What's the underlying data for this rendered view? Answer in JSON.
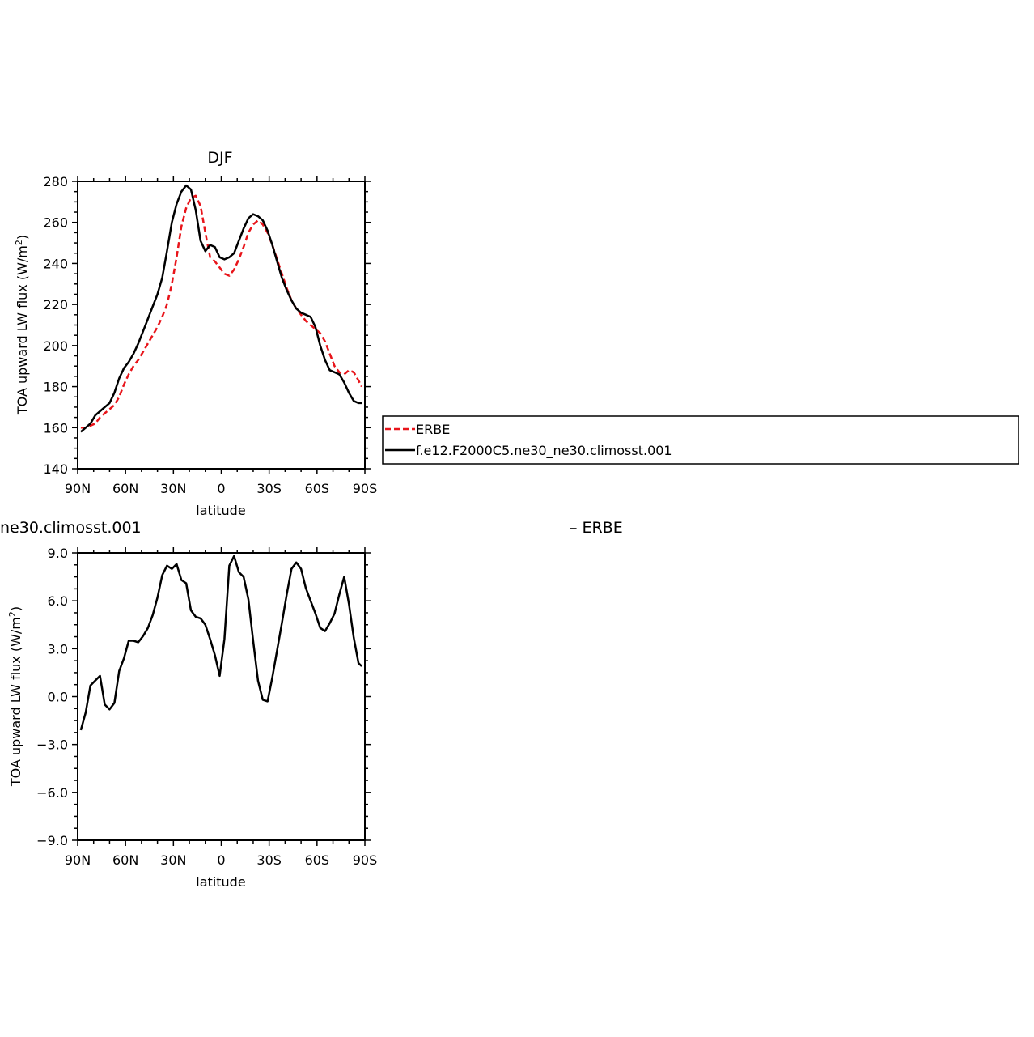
{
  "chart_data": [
    {
      "type": "line",
      "title": "DJF",
      "xlabel": "latitude",
      "ylabel": "TOA upward LW flux (W/m",
      "ylabel_sup": "2",
      "ylabel_close": ")",
      "xlim": [
        90,
        -90
      ],
      "ylim": [
        140,
        280
      ],
      "xticks": [
        {
          "value": 90,
          "label": "90N"
        },
        {
          "value": 60,
          "label": "60N"
        },
        {
          "value": 30,
          "label": "30N"
        },
        {
          "value": 0,
          "label": "0"
        },
        {
          "value": -30,
          "label": "30S"
        },
        {
          "value": -60,
          "label": "60S"
        },
        {
          "value": -90,
          "label": "90S"
        }
      ],
      "yticks": [
        {
          "value": 140,
          "label": "140"
        },
        {
          "value": 160,
          "label": "160"
        },
        {
          "value": 180,
          "label": "180"
        },
        {
          "value": 200,
          "label": "200"
        },
        {
          "value": 220,
          "label": "220"
        },
        {
          "value": 240,
          "label": "240"
        },
        {
          "value": 260,
          "label": "260"
        },
        {
          "value": 280,
          "label": "280"
        }
      ],
      "legend": "right",
      "series": [
        {
          "name": "ERBE",
          "color": "#e8141a",
          "dash": true,
          "x": [
            88,
            85,
            82,
            79,
            76,
            73,
            70,
            67,
            64,
            61,
            58,
            55,
            52,
            49,
            46,
            43,
            40,
            37,
            34,
            31,
            28,
            25,
            22,
            19,
            16,
            13,
            10,
            7,
            4,
            1,
            -2,
            -5,
            -8,
            -11,
            -14,
            -17,
            -20,
            -23,
            -26,
            -29,
            -32,
            -35,
            -38,
            -41,
            -44,
            -47,
            -50,
            -53,
            -56,
            -59,
            -62,
            -65,
            -68,
            -71,
            -74,
            -77,
            -80,
            -83,
            -86,
            -88
          ],
          "values": [
            160,
            160,
            161,
            162,
            165,
            167,
            169,
            171,
            175,
            181,
            186,
            190,
            193,
            197,
            201,
            205,
            209,
            214,
            220,
            230,
            243,
            258,
            267,
            272,
            273,
            268,
            255,
            243,
            241,
            238,
            235,
            234,
            237,
            242,
            248,
            255,
            259,
            261,
            259,
            255,
            249,
            242,
            235,
            228,
            222,
            218,
            215,
            212,
            210,
            208,
            206,
            202,
            196,
            190,
            187,
            186,
            188,
            187,
            183,
            180
          ]
        },
        {
          "name": "f.e12.F2000C5.ne30_ne30.climosst.001",
          "color": "#000000",
          "dash": false,
          "x": [
            88,
            85,
            82,
            79,
            76,
            73,
            70,
            67,
            64,
            61,
            58,
            55,
            52,
            49,
            46,
            43,
            40,
            37,
            34,
            31,
            28,
            25,
            22,
            19,
            16,
            13,
            10,
            7,
            4,
            1,
            -2,
            -5,
            -8,
            -11,
            -14,
            -17,
            -20,
            -23,
            -26,
            -29,
            -32,
            -35,
            -38,
            -41,
            -44,
            -47,
            -50,
            -53,
            -56,
            -59,
            -62,
            -65,
            -68,
            -71,
            -74,
            -77,
            -80,
            -83,
            -86,
            -88
          ],
          "values": [
            158,
            160,
            162,
            166,
            168,
            170,
            172,
            177,
            184,
            189,
            192,
            196,
            201,
            207,
            213,
            219,
            225,
            233,
            246,
            260,
            269,
            275,
            278,
            276,
            266,
            251,
            246,
            249,
            248,
            243,
            242,
            243,
            245,
            251,
            257,
            262,
            264,
            263,
            261,
            256,
            249,
            241,
            233,
            227,
            222,
            218,
            216,
            215,
            214,
            209,
            200,
            193,
            188,
            187,
            186,
            182,
            177,
            173,
            172,
            172
          ]
        }
      ]
    },
    {
      "type": "line",
      "title": "ne30.climosst.001",
      "title_right": "– ERBE",
      "xlabel": "latitude",
      "ylabel": "TOA upward LW flux (W/m",
      "ylabel_sup": "2",
      "ylabel_close": ")",
      "xlim": [
        90,
        -90
      ],
      "ylim": [
        -9,
        9
      ],
      "xticks": [
        {
          "value": 90,
          "label": "90N"
        },
        {
          "value": 60,
          "label": "60N"
        },
        {
          "value": 30,
          "label": "30N"
        },
        {
          "value": 0,
          "label": "0"
        },
        {
          "value": -30,
          "label": "30S"
        },
        {
          "value": -60,
          "label": "60S"
        },
        {
          "value": -90,
          "label": "90S"
        }
      ],
      "yticks": [
        {
          "value": -9,
          "label": "−9.0"
        },
        {
          "value": -6,
          "label": "−6.0"
        },
        {
          "value": -3,
          "label": "−3.0"
        },
        {
          "value": 0,
          "label": "0.0"
        },
        {
          "value": 3,
          "label": "3.0"
        },
        {
          "value": 6,
          "label": "6.0"
        },
        {
          "value": 9,
          "label": "9.0"
        }
      ],
      "series": [
        {
          "color": "#000000",
          "x": [
            88,
            85,
            82,
            79,
            76,
            73,
            70,
            67,
            64,
            61,
            58,
            55,
            52,
            49,
            46,
            43,
            40,
            37,
            34,
            31,
            28,
            25,
            22,
            19,
            16,
            13,
            10,
            7,
            4,
            1,
            -2,
            -5,
            -8,
            -11,
            -14,
            -17,
            -20,
            -23,
            -26,
            -29,
            -32,
            -35,
            -38,
            -41,
            -44,
            -47,
            -50,
            -53,
            -56,
            -59,
            -62,
            -65,
            -68,
            -71,
            -74,
            -77,
            -80,
            -83,
            -86,
            -88
          ],
          "values": [
            -2.1,
            -1.0,
            0.7,
            1.0,
            1.3,
            -0.5,
            -0.8,
            -0.4,
            1.6,
            2.4,
            3.5,
            3.5,
            3.4,
            3.8,
            4.3,
            5.1,
            6.2,
            7.6,
            8.2,
            8.0,
            8.3,
            7.3,
            7.1,
            5.4,
            5.0,
            4.9,
            4.5,
            3.6,
            2.6,
            1.3,
            3.6,
            8.2,
            8.8,
            7.8,
            7.5,
            6.1,
            3.5,
            1.0,
            -0.2,
            -0.3,
            1.2,
            2.9,
            4.6,
            6.4,
            8.0,
            8.4,
            8.0,
            6.8,
            6.0,
            5.2,
            4.3,
            4.1,
            4.6,
            5.2,
            6.4,
            7.5,
            5.8,
            3.7,
            2.1,
            1.9
          ]
        }
      ]
    }
  ]
}
